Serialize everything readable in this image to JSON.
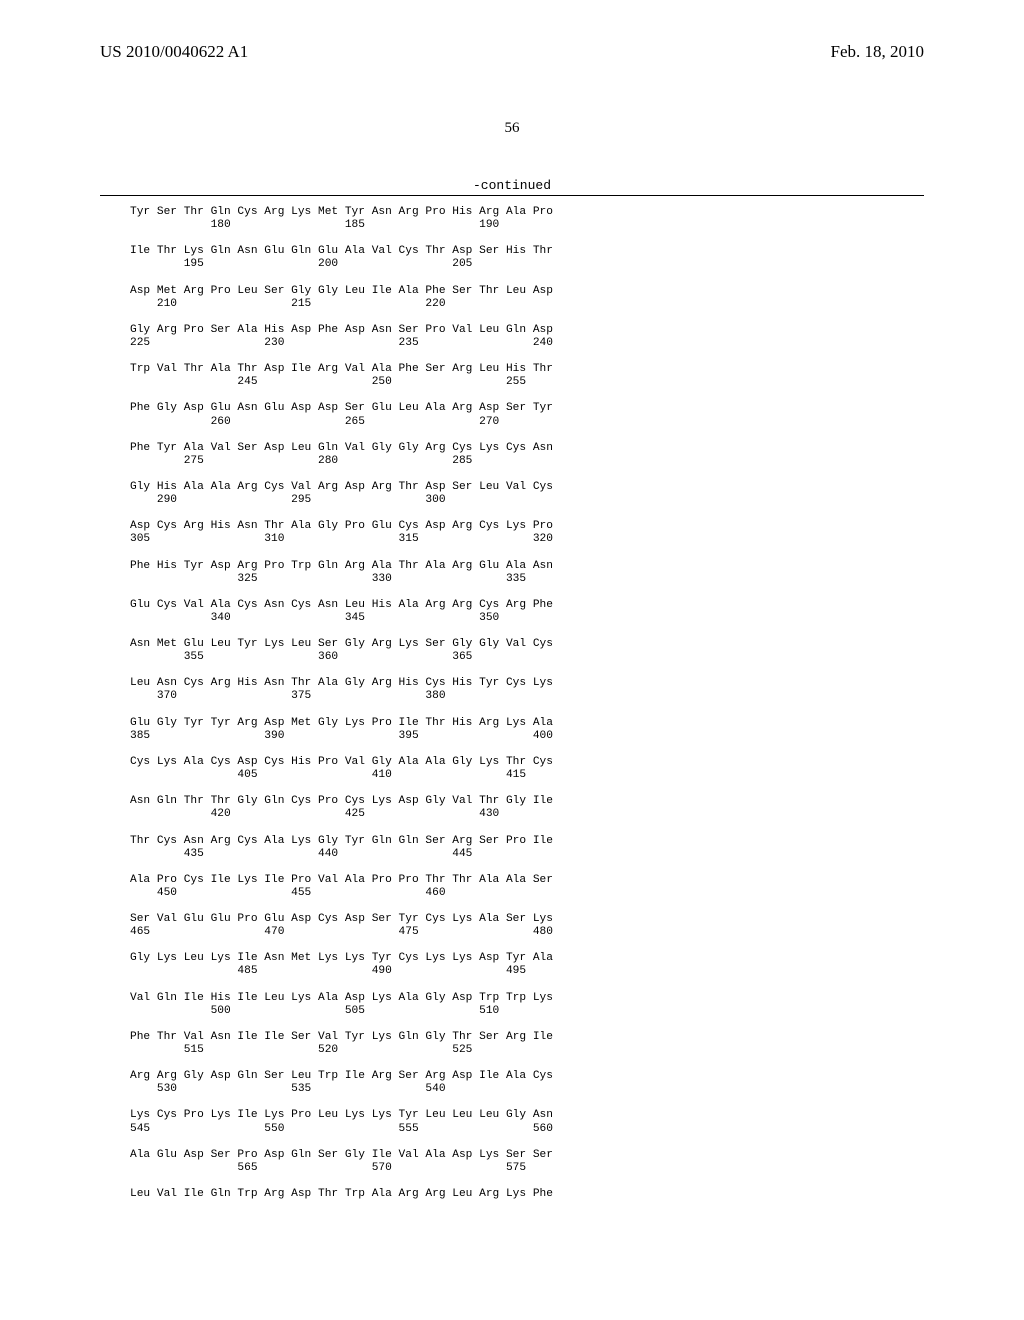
{
  "header": {
    "pub_no": "US 2010/0040622 A1",
    "pub_date": "Feb. 18, 2010",
    "page_number": "56",
    "continued_label": "-continued"
  },
  "sequence": {
    "rows": [
      {
        "aa": "Tyr Ser Thr Gln Cys Arg Lys Met Tyr Asn Arg Pro His Arg Ala Pro",
        "nums": "            180                 185                 190"
      },
      {
        "aa": "Ile Thr Lys Gln Asn Glu Gln Glu Ala Val Cys Thr Asp Ser His Thr",
        "nums": "        195                 200                 205"
      },
      {
        "aa": "Asp Met Arg Pro Leu Ser Gly Gly Leu Ile Ala Phe Ser Thr Leu Asp",
        "nums": "    210                 215                 220"
      },
      {
        "aa": "Gly Arg Pro Ser Ala His Asp Phe Asp Asn Ser Pro Val Leu Gln Asp",
        "nums": "225                 230                 235                 240"
      },
      {
        "aa": "Trp Val Thr Ala Thr Asp Ile Arg Val Ala Phe Ser Arg Leu His Thr",
        "nums": "                245                 250                 255"
      },
      {
        "aa": "Phe Gly Asp Glu Asn Glu Asp Asp Ser Glu Leu Ala Arg Asp Ser Tyr",
        "nums": "            260                 265                 270"
      },
      {
        "aa": "Phe Tyr Ala Val Ser Asp Leu Gln Val Gly Gly Arg Cys Lys Cys Asn",
        "nums": "        275                 280                 285"
      },
      {
        "aa": "Gly His Ala Ala Arg Cys Val Arg Asp Arg Thr Asp Ser Leu Val Cys",
        "nums": "    290                 295                 300"
      },
      {
        "aa": "Asp Cys Arg His Asn Thr Ala Gly Pro Glu Cys Asp Arg Cys Lys Pro",
        "nums": "305                 310                 315                 320"
      },
      {
        "aa": "Phe His Tyr Asp Arg Pro Trp Gln Arg Ala Thr Ala Arg Glu Ala Asn",
        "nums": "                325                 330                 335"
      },
      {
        "aa": "Glu Cys Val Ala Cys Asn Cys Asn Leu His Ala Arg Arg Cys Arg Phe",
        "nums": "            340                 345                 350"
      },
      {
        "aa": "Asn Met Glu Leu Tyr Lys Leu Ser Gly Arg Lys Ser Gly Gly Val Cys",
        "nums": "        355                 360                 365"
      },
      {
        "aa": "Leu Asn Cys Arg His Asn Thr Ala Gly Arg His Cys His Tyr Cys Lys",
        "nums": "    370                 375                 380"
      },
      {
        "aa": "Glu Gly Tyr Tyr Arg Asp Met Gly Lys Pro Ile Thr His Arg Lys Ala",
        "nums": "385                 390                 395                 400"
      },
      {
        "aa": "Cys Lys Ala Cys Asp Cys His Pro Val Gly Ala Ala Gly Lys Thr Cys",
        "nums": "                405                 410                 415"
      },
      {
        "aa": "Asn Gln Thr Thr Gly Gln Cys Pro Cys Lys Asp Gly Val Thr Gly Ile",
        "nums": "            420                 425                 430"
      },
      {
        "aa": "Thr Cys Asn Arg Cys Ala Lys Gly Tyr Gln Gln Ser Arg Ser Pro Ile",
        "nums": "        435                 440                 445"
      },
      {
        "aa": "Ala Pro Cys Ile Lys Ile Pro Val Ala Pro Pro Thr Thr Ala Ala Ser",
        "nums": "    450                 455                 460"
      },
      {
        "aa": "Ser Val Glu Glu Pro Glu Asp Cys Asp Ser Tyr Cys Lys Ala Ser Lys",
        "nums": "465                 470                 475                 480"
      },
      {
        "aa": "Gly Lys Leu Lys Ile Asn Met Lys Lys Tyr Cys Lys Lys Asp Tyr Ala",
        "nums": "                485                 490                 495"
      },
      {
        "aa": "Val Gln Ile His Ile Leu Lys Ala Asp Lys Ala Gly Asp Trp Trp Lys",
        "nums": "            500                 505                 510"
      },
      {
        "aa": "Phe Thr Val Asn Ile Ile Ser Val Tyr Lys Gln Gly Thr Ser Arg Ile",
        "nums": "        515                 520                 525"
      },
      {
        "aa": "Arg Arg Gly Asp Gln Ser Leu Trp Ile Arg Ser Arg Asp Ile Ala Cys",
        "nums": "    530                 535                 540"
      },
      {
        "aa": "Lys Cys Pro Lys Ile Lys Pro Leu Lys Lys Tyr Leu Leu Leu Gly Asn",
        "nums": "545                 550                 555                 560"
      },
      {
        "aa": "Ala Glu Asp Ser Pro Asp Gln Ser Gly Ile Val Ala Asp Lys Ser Ser",
        "nums": "                565                 570                 575"
      },
      {
        "aa": "Leu Val Ile Gln Trp Arg Asp Thr Trp Ala Arg Arg Leu Arg Lys Phe",
        "nums": ""
      }
    ]
  }
}
